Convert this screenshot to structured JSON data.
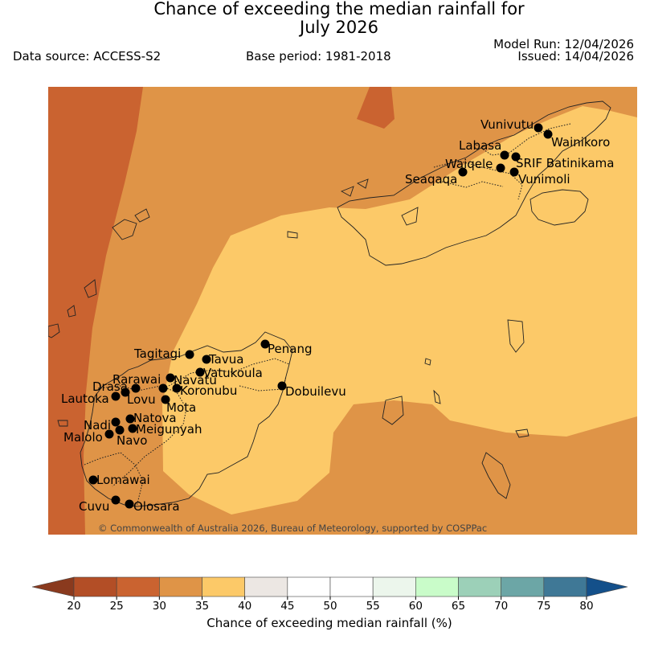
{
  "header": {
    "title_line1": "Chance of exceeding the median rainfall for",
    "title_line2": "July 2026",
    "data_source": "Data source: ACCESS-S2",
    "base_period": "Base period: 1981-2018",
    "model_run": "Model Run: 12/04/2026",
    "issued": "Issued: 14/04/2026"
  },
  "map": {
    "copyright": "© Commonwealth of Australia 2026, Bureau of Meteorology, supported by COSPPac",
    "places": [
      {
        "id": "vunivutu",
        "name": "Vunivutu"
      },
      {
        "id": "wainikoro",
        "name": "Wainikoro"
      },
      {
        "id": "labasa",
        "name": "Labasa"
      },
      {
        "id": "waiqele",
        "name": "Waiqele"
      },
      {
        "id": "srif-batinikama",
        "name": "SRIF Batinikama"
      },
      {
        "id": "seaqaqa",
        "name": "Seaqaqa"
      },
      {
        "id": "vunimoli",
        "name": "Vunimoli"
      },
      {
        "id": "penang",
        "name": "Penang"
      },
      {
        "id": "tagitagi",
        "name": "Tagitagi"
      },
      {
        "id": "tavua",
        "name": "Tavua"
      },
      {
        "id": "vatukoula",
        "name": "Vatukoula"
      },
      {
        "id": "rarawai",
        "name": "Rarawai"
      },
      {
        "id": "navatu",
        "name": "Navatu"
      },
      {
        "id": "drasa",
        "name": "Drasa"
      },
      {
        "id": "koronubu",
        "name": "Koronubu"
      },
      {
        "id": "dobuilevu",
        "name": "Dobuilevu"
      },
      {
        "id": "lautoka",
        "name": "Lautoka"
      },
      {
        "id": "lovu",
        "name": "Lovu"
      },
      {
        "id": "mota",
        "name": "Mota"
      },
      {
        "id": "natova",
        "name": "Natova"
      },
      {
        "id": "nadi",
        "name": "Nadi"
      },
      {
        "id": "meigunyah",
        "name": "Meigunyah"
      },
      {
        "id": "malolo",
        "name": "Malolo"
      },
      {
        "id": "navo",
        "name": "Navo"
      },
      {
        "id": "lomawai",
        "name": "Lomawai"
      },
      {
        "id": "cuvu",
        "name": "Cuvu"
      },
      {
        "id": "olosara",
        "name": "Olosara"
      }
    ]
  },
  "legend": {
    "title": "Chance of exceeding median rainfall (%)",
    "ticks": [
      "20",
      "25",
      "30",
      "35",
      "40",
      "45",
      "50",
      "55",
      "60",
      "65",
      "70",
      "75",
      "80"
    ],
    "colors": [
      "#b34e26",
      "#ca6330",
      "#df9447",
      "#fcc968",
      "#ece7e3",
      "#ffffff",
      "#ffffff",
      "#ecf6ec",
      "#c9fcc9",
      "#9cd0b8",
      "#6ca6a6",
      "#3f7896"
    ],
    "under_color": "#8a3a1e",
    "over_color": "#14508a"
  }
}
